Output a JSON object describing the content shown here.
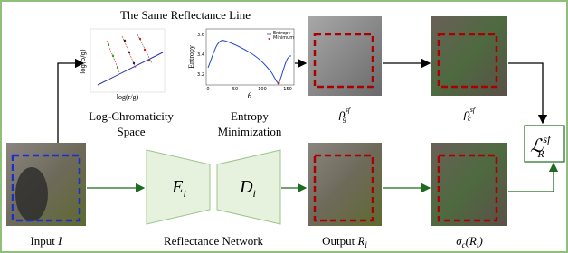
{
  "title": "The Same Reflectance Line",
  "log_chroma": {
    "y_label": "log(b/g)",
    "x_label": "log(r/g)",
    "caption_lines": [
      "Log-Chromaticity",
      "Space"
    ]
  },
  "entropy_plot": {
    "y_label": "Entropy",
    "x_label": "θ",
    "xticks": [
      "0",
      "50",
      "100",
      "150"
    ],
    "yticks": [
      "3.2",
      "3.4",
      "3.6"
    ],
    "legend": [
      "Entropy",
      "Minimum"
    ],
    "caption_lines": [
      "Entropy",
      "Minimization"
    ]
  },
  "rho_g": {
    "base": "ρ",
    "sub": "g",
    "sup": "sf"
  },
  "rho_c": {
    "base": "ρ",
    "sub": "c",
    "sup": "sf"
  },
  "loss": {
    "base": "ℒ",
    "sub": "R",
    "sup": "sf"
  },
  "input": {
    "text": "Input",
    "symbol": "I"
  },
  "encoder": {
    "base": "E",
    "sub": "i"
  },
  "decoder": {
    "base": "D",
    "sub": "i"
  },
  "network": "Reflectance Network",
  "output": {
    "text": "Output",
    "base": "R",
    "sub": "i"
  },
  "sigma": {
    "text": "σ",
    "sub": "c",
    "arg": "(R",
    "argsub": "i",
    "close": ")"
  }
}
